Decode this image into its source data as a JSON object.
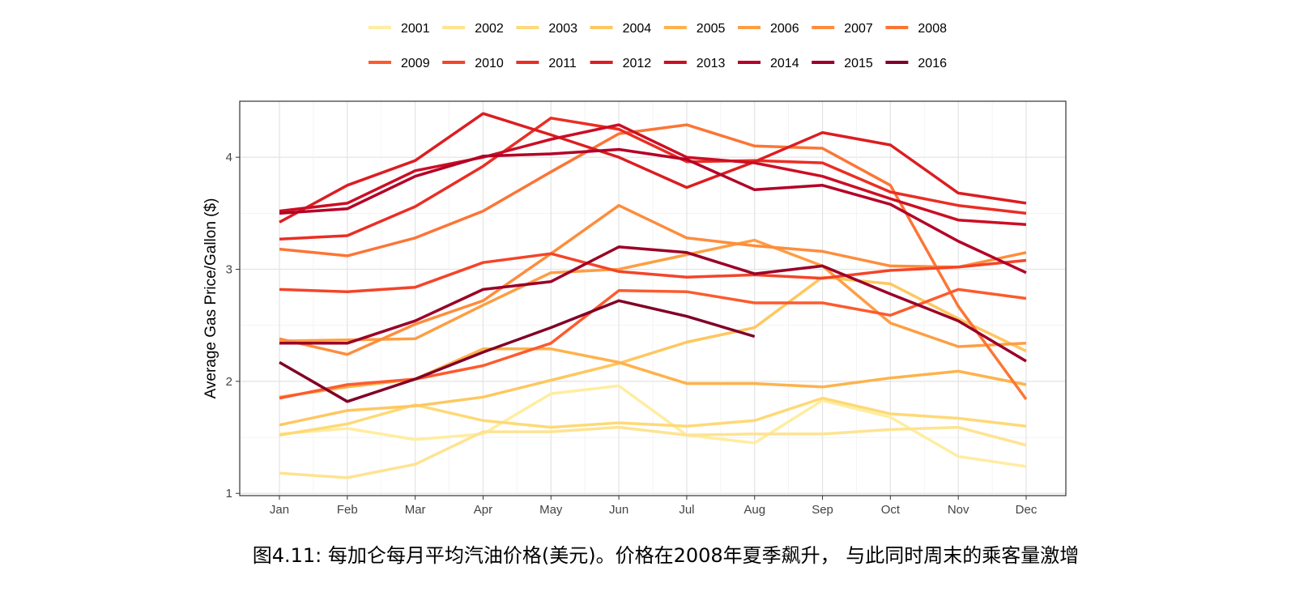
{
  "caption": "图4.11: 每加仑每月平均汽油价格(美元)。价格在2008年夏季飙升， 与此同时周末的乘客量激增",
  "chart_data": {
    "type": "line",
    "title": "",
    "xlabel": "",
    "ylabel": "Average Gas Price/Gallon ($)",
    "categories": [
      "Jan",
      "Feb",
      "Mar",
      "Apr",
      "May",
      "Jun",
      "Jul",
      "Aug",
      "Sep",
      "Oct",
      "Nov",
      "Dec"
    ],
    "ylim": [
      0.98,
      4.5
    ],
    "yticks": [
      1,
      2,
      3,
      4
    ],
    "grid": true,
    "legend_position": "top",
    "series": [
      {
        "name": "2001",
        "color": "#FFEDA0",
        "values": [
          1.53,
          1.58,
          1.48,
          1.53,
          1.89,
          1.96,
          1.52,
          1.45,
          1.83,
          1.68,
          1.33,
          1.24
        ]
      },
      {
        "name": "2002",
        "color": "#FEE391",
        "values": [
          1.18,
          1.14,
          1.26,
          1.55,
          1.55,
          1.59,
          1.52,
          1.53,
          1.53,
          1.57,
          1.59,
          1.43
        ]
      },
      {
        "name": "2003",
        "color": "#FED976",
        "values": [
          1.52,
          1.62,
          1.79,
          1.65,
          1.59,
          1.63,
          1.6,
          1.65,
          1.85,
          1.71,
          1.67,
          1.6
        ]
      },
      {
        "name": "2004",
        "color": "#FEC75F",
        "values": [
          1.61,
          1.74,
          1.78,
          1.86,
          2.01,
          2.16,
          2.35,
          2.48,
          2.93,
          2.87,
          2.56,
          2.27
        ]
      },
      {
        "name": "2005",
        "color": "#FEB24C",
        "values": [
          1.86,
          1.95,
          2.02,
          2.29,
          2.29,
          2.17,
          1.98,
          1.98,
          1.95,
          2.03,
          2.09,
          1.97
        ]
      },
      {
        "name": "2006",
        "color": "#FD9E43",
        "values": [
          2.36,
          2.37,
          2.38,
          2.68,
          2.97,
          3.0,
          3.13,
          3.26,
          3.03,
          2.52,
          2.31,
          2.34
        ]
      },
      {
        "name": "2007",
        "color": "#FD8D3C",
        "values": [
          2.38,
          2.24,
          2.51,
          2.72,
          3.14,
          3.57,
          3.28,
          3.21,
          3.16,
          3.03,
          3.02,
          3.15
        ]
      },
      {
        "name": "2008",
        "color": "#FC7535",
        "values": [
          3.18,
          3.12,
          3.28,
          3.52,
          3.87,
          4.21,
          4.29,
          4.1,
          4.08,
          3.75,
          2.67,
          1.84
        ]
      },
      {
        "name": "2009",
        "color": "#FC5B2E",
        "values": [
          1.85,
          1.97,
          2.02,
          2.14,
          2.34,
          2.81,
          2.8,
          2.7,
          2.7,
          2.59,
          2.82,
          2.74
        ]
      },
      {
        "name": "2010",
        "color": "#F44429",
        "values": [
          2.82,
          2.8,
          2.84,
          3.06,
          3.14,
          2.98,
          2.93,
          2.95,
          2.92,
          2.99,
          3.02,
          3.08
        ]
      },
      {
        "name": "2011",
        "color": "#EA2E24",
        "values": [
          3.27,
          3.3,
          3.56,
          3.92,
          4.35,
          4.25,
          3.96,
          3.97,
          3.95,
          3.69,
          3.57,
          3.5
        ]
      },
      {
        "name": "2012",
        "color": "#DC1D21",
        "values": [
          3.42,
          3.75,
          3.97,
          4.39,
          4.2,
          4.0,
          3.73,
          3.96,
          4.22,
          4.11,
          3.68,
          3.59
        ]
      },
      {
        "name": "2013",
        "color": "#CB0E24",
        "values": [
          3.52,
          3.59,
          3.88,
          4.0,
          4.16,
          4.29,
          4.0,
          3.95,
          3.83,
          3.63,
          3.44,
          3.4
        ]
      },
      {
        "name": "2014",
        "color": "#B30026",
        "values": [
          3.5,
          3.54,
          3.83,
          4.01,
          4.03,
          4.07,
          3.98,
          3.71,
          3.75,
          3.58,
          3.25,
          2.97
        ]
      },
      {
        "name": "2015",
        "color": "#9A0027",
        "values": [
          2.34,
          2.34,
          2.54,
          2.82,
          2.89,
          3.2,
          3.15,
          2.96,
          3.03,
          2.78,
          2.54,
          2.18
        ]
      },
      {
        "name": "2016",
        "color": "#800026",
        "values": [
          2.17,
          1.82,
          2.02,
          2.26,
          2.48,
          2.72,
          2.58,
          2.4,
          null,
          null,
          null,
          null
        ]
      }
    ]
  }
}
